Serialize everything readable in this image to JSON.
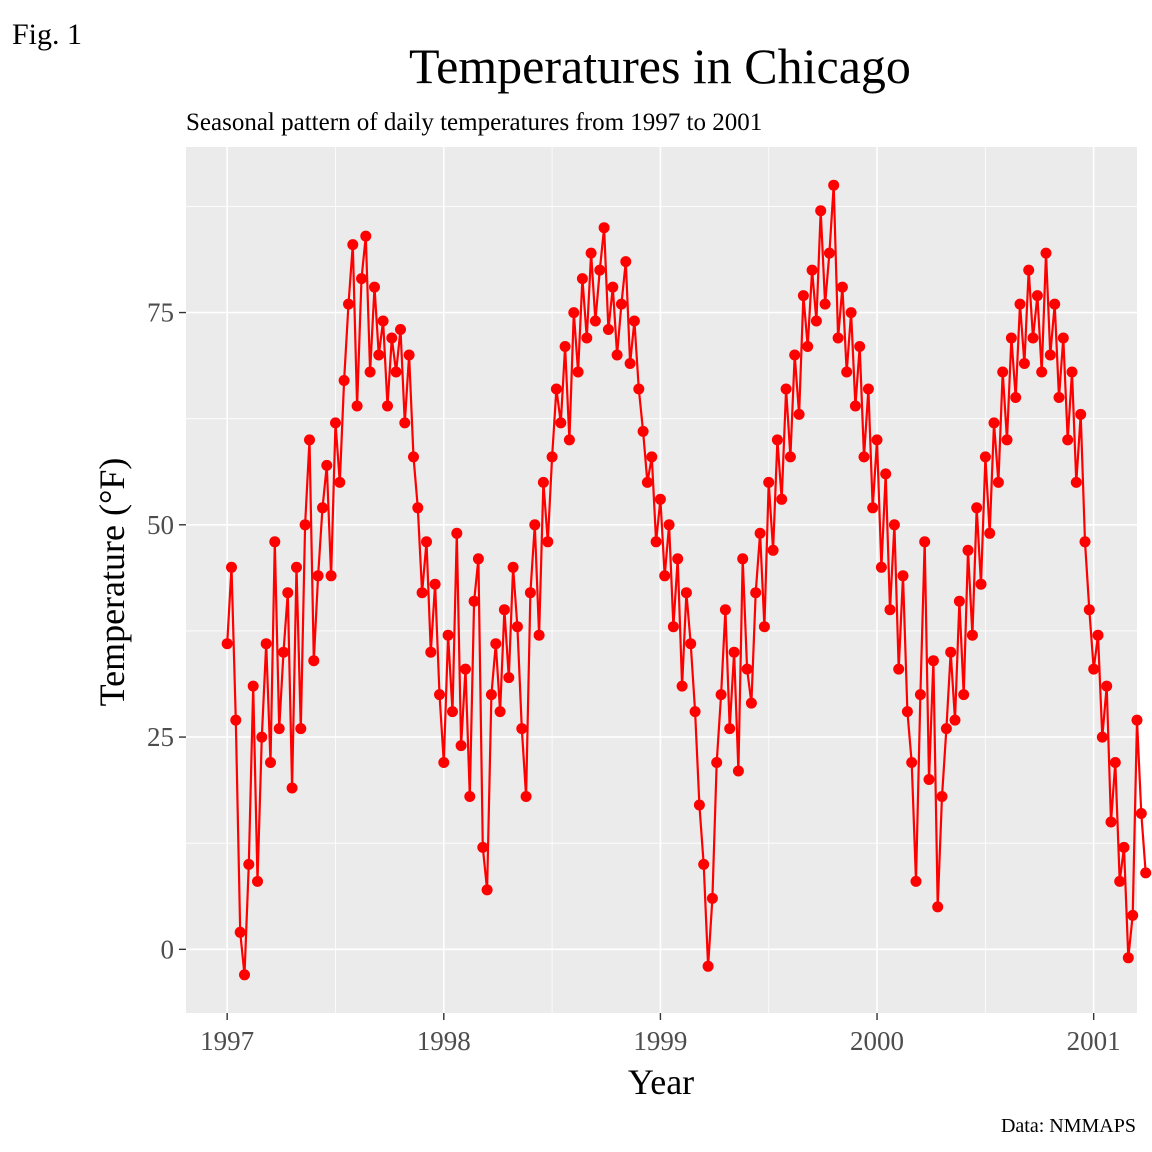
{
  "figure_label": "Fig. 1",
  "caption": "Data: NMMAPS",
  "colors": {
    "series": "#ff0000",
    "panel": "#ebebeb",
    "grid": "#ffffff",
    "tick_text": "#4d4d4d"
  },
  "chart_data": {
    "type": "line",
    "title": "Temperatures in Chicago",
    "subtitle": "Seasonal pattern of daily temperatures from 1997 to 2001",
    "xlabel": "Year",
    "ylabel": "Temperature (°F)",
    "x_ticks": [
      1997,
      1998,
      1999,
      2000,
      2001
    ],
    "y_ticks": [
      0,
      25,
      50,
      75
    ],
    "xlim": [
      1996.81,
      2001.2
    ],
    "ylim": [
      -7.5,
      94.5
    ],
    "grid": true,
    "legend": "none",
    "markers": "points",
    "series": [
      {
        "values": [
          [
            1997.0,
            36
          ],
          [
            1997.02,
            45
          ],
          [
            1997.04,
            27
          ],
          [
            1997.06,
            2
          ],
          [
            1997.08,
            -3
          ],
          [
            1997.1,
            10
          ],
          [
            1997.12,
            31
          ],
          [
            1997.14,
            8
          ],
          [
            1997.16,
            25
          ],
          [
            1997.18,
            36
          ],
          [
            1997.2,
            22
          ],
          [
            1997.22,
            48
          ],
          [
            1997.24,
            26
          ],
          [
            1997.26,
            35
          ],
          [
            1997.28,
            42
          ],
          [
            1997.3,
            19
          ],
          [
            1997.32,
            45
          ],
          [
            1997.34,
            26
          ],
          [
            1997.36,
            50
          ],
          [
            1997.38,
            60
          ],
          [
            1997.4,
            34
          ],
          [
            1997.42,
            44
          ],
          [
            1997.44,
            52
          ],
          [
            1997.46,
            57
          ],
          [
            1997.48,
            44
          ],
          [
            1997.5,
            62
          ],
          [
            1997.52,
            55
          ],
          [
            1997.54,
            67
          ],
          [
            1997.56,
            76
          ],
          [
            1997.58,
            83
          ],
          [
            1997.6,
            64
          ],
          [
            1997.62,
            79
          ],
          [
            1997.64,
            84
          ],
          [
            1997.66,
            68
          ],
          [
            1997.68,
            78
          ],
          [
            1997.7,
            70
          ],
          [
            1997.72,
            74
          ],
          [
            1997.74,
            64
          ],
          [
            1997.76,
            72
          ],
          [
            1997.78,
            68
          ],
          [
            1997.8,
            73
          ],
          [
            1997.82,
            62
          ],
          [
            1997.84,
            70
          ],
          [
            1997.86,
            58
          ],
          [
            1997.88,
            52
          ],
          [
            1997.9,
            42
          ],
          [
            1997.92,
            48
          ],
          [
            1997.94,
            35
          ],
          [
            1997.96,
            43
          ],
          [
            1997.98,
            30
          ],
          [
            1998.0,
            22
          ],
          [
            1998.02,
            37
          ],
          [
            1998.04,
            28
          ],
          [
            1998.06,
            49
          ],
          [
            1998.08,
            24
          ],
          [
            1998.1,
            33
          ],
          [
            1998.12,
            18
          ],
          [
            1998.14,
            41
          ],
          [
            1998.16,
            46
          ],
          [
            1998.18,
            12
          ],
          [
            1998.2,
            7
          ],
          [
            1998.22,
            30
          ],
          [
            1998.24,
            36
          ],
          [
            1998.26,
            28
          ],
          [
            1998.28,
            40
          ],
          [
            1998.3,
            32
          ],
          [
            1998.32,
            45
          ],
          [
            1998.34,
            38
          ],
          [
            1998.36,
            26
          ],
          [
            1998.38,
            18
          ],
          [
            1998.4,
            42
          ],
          [
            1998.42,
            50
          ],
          [
            1998.44,
            37
          ],
          [
            1998.46,
            55
          ],
          [
            1998.48,
            48
          ],
          [
            1998.5,
            58
          ],
          [
            1998.52,
            66
          ],
          [
            1998.54,
            62
          ],
          [
            1998.56,
            71
          ],
          [
            1998.58,
            60
          ],
          [
            1998.6,
            75
          ],
          [
            1998.62,
            68
          ],
          [
            1998.64,
            79
          ],
          [
            1998.66,
            72
          ],
          [
            1998.68,
            82
          ],
          [
            1998.7,
            74
          ],
          [
            1998.72,
            80
          ],
          [
            1998.74,
            85
          ],
          [
            1998.76,
            73
          ],
          [
            1998.78,
            78
          ],
          [
            1998.8,
            70
          ],
          [
            1998.82,
            76
          ],
          [
            1998.84,
            81
          ],
          [
            1998.86,
            69
          ],
          [
            1998.88,
            74
          ],
          [
            1998.9,
            66
          ],
          [
            1998.92,
            61
          ],
          [
            1998.94,
            55
          ],
          [
            1998.96,
            58
          ],
          [
            1998.98,
            48
          ],
          [
            1999.0,
            53
          ],
          [
            1999.02,
            44
          ],
          [
            1999.04,
            50
          ],
          [
            1999.06,
            38
          ],
          [
            1999.08,
            46
          ],
          [
            1999.1,
            31
          ],
          [
            1999.12,
            42
          ],
          [
            1999.14,
            36
          ],
          [
            1999.16,
            28
          ],
          [
            1999.18,
            17
          ],
          [
            1999.2,
            10
          ],
          [
            1999.22,
            -2
          ],
          [
            1999.24,
            6
          ],
          [
            1999.26,
            22
          ],
          [
            1999.28,
            30
          ],
          [
            1999.3,
            40
          ],
          [
            1999.32,
            26
          ],
          [
            1999.34,
            35
          ],
          [
            1999.36,
            21
          ],
          [
            1999.38,
            46
          ],
          [
            1999.4,
            33
          ],
          [
            1999.42,
            29
          ],
          [
            1999.44,
            42
          ],
          [
            1999.46,
            49
          ],
          [
            1999.48,
            38
          ],
          [
            1999.5,
            55
          ],
          [
            1999.52,
            47
          ],
          [
            1999.54,
            60
          ],
          [
            1999.56,
            53
          ],
          [
            1999.58,
            66
          ],
          [
            1999.6,
            58
          ],
          [
            1999.62,
            70
          ],
          [
            1999.64,
            63
          ],
          [
            1999.66,
            77
          ],
          [
            1999.68,
            71
          ],
          [
            1999.7,
            80
          ],
          [
            1999.72,
            74
          ],
          [
            1999.74,
            87
          ],
          [
            1999.76,
            76
          ],
          [
            1999.78,
            82
          ],
          [
            1999.8,
            90
          ],
          [
            1999.82,
            72
          ],
          [
            1999.84,
            78
          ],
          [
            1999.86,
            68
          ],
          [
            1999.88,
            75
          ],
          [
            1999.9,
            64
          ],
          [
            1999.92,
            71
          ],
          [
            1999.94,
            58
          ],
          [
            1999.96,
            66
          ],
          [
            1999.98,
            52
          ],
          [
            2000.0,
            60
          ],
          [
            2000.02,
            45
          ],
          [
            2000.04,
            56
          ],
          [
            2000.06,
            40
          ],
          [
            2000.08,
            50
          ],
          [
            2000.1,
            33
          ],
          [
            2000.12,
            44
          ],
          [
            2000.14,
            28
          ],
          [
            2000.16,
            22
          ],
          [
            2000.18,
            8
          ],
          [
            2000.2,
            30
          ],
          [
            2000.22,
            48
          ],
          [
            2000.24,
            20
          ],
          [
            2000.26,
            34
          ],
          [
            2000.28,
            5
          ],
          [
            2000.3,
            18
          ],
          [
            2000.32,
            26
          ],
          [
            2000.34,
            35
          ],
          [
            2000.36,
            27
          ],
          [
            2000.38,
            41
          ],
          [
            2000.4,
            30
          ],
          [
            2000.42,
            47
          ],
          [
            2000.44,
            37
          ],
          [
            2000.46,
            52
          ],
          [
            2000.48,
            43
          ],
          [
            2000.5,
            58
          ],
          [
            2000.52,
            49
          ],
          [
            2000.54,
            62
          ],
          [
            2000.56,
            55
          ],
          [
            2000.58,
            68
          ],
          [
            2000.6,
            60
          ],
          [
            2000.62,
            72
          ],
          [
            2000.64,
            65
          ],
          [
            2000.66,
            76
          ],
          [
            2000.68,
            69
          ],
          [
            2000.7,
            80
          ],
          [
            2000.72,
            72
          ],
          [
            2000.74,
            77
          ],
          [
            2000.76,
            68
          ],
          [
            2000.78,
            82
          ],
          [
            2000.8,
            70
          ],
          [
            2000.82,
            76
          ],
          [
            2000.84,
            65
          ],
          [
            2000.86,
            72
          ],
          [
            2000.88,
            60
          ],
          [
            2000.9,
            68
          ],
          [
            2000.92,
            55
          ],
          [
            2000.94,
            63
          ],
          [
            2000.96,
            48
          ],
          [
            2000.98,
            40
          ],
          [
            2001.0,
            33
          ],
          [
            2001.02,
            37
          ],
          [
            2001.04,
            25
          ],
          [
            2001.06,
            31
          ],
          [
            2001.08,
            15
          ],
          [
            2001.1,
            22
          ],
          [
            2001.12,
            8
          ],
          [
            2001.14,
            12
          ],
          [
            2001.16,
            -1
          ],
          [
            2001.18,
            4
          ],
          [
            2001.2,
            27
          ],
          [
            2001.22,
            16
          ],
          [
            2001.24,
            9
          ]
        ]
      }
    ]
  }
}
